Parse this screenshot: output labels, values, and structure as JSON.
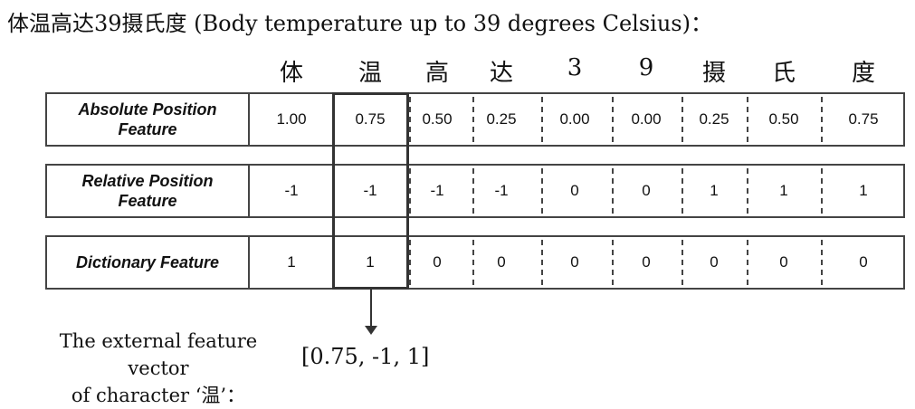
{
  "title": "体温高达39摄氏度 (Body temperature up to 39 degrees Celsius)：",
  "characters": [
    "体",
    "温",
    "高",
    "达",
    "3",
    "9",
    "摄",
    "氏",
    "度"
  ],
  "rows": [
    {
      "label_line1": "Absolute Position",
      "label_line2": "Feature",
      "values": [
        "1.00",
        "0.75",
        "0.50",
        "0.25",
        "0.00",
        "0.00",
        "0.25",
        "0.50",
        "0.75"
      ]
    },
    {
      "label_line1": "Relative Position",
      "label_line2": "Feature",
      "values": [
        "-1",
        "-1",
        "-1",
        "-1",
        "0",
        "0",
        "1",
        "1",
        "1"
      ]
    },
    {
      "label_line1": "Dictionary Feature",
      "label_line2": "",
      "values": [
        "1",
        "1",
        "0",
        "0",
        "0",
        "0",
        "0",
        "0",
        "0"
      ]
    }
  ],
  "caption_line1": "The external feature vector",
  "caption_line2": "of character ‘温’：",
  "result_vector": "[0.75, -1, 1]"
}
